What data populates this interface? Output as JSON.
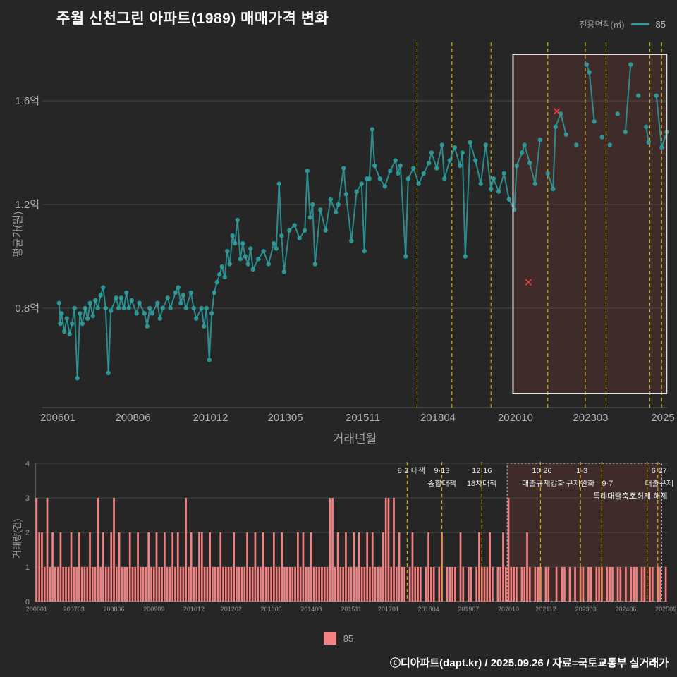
{
  "title": "주월 신천그린 아파트(1989) 매매가격 변화",
  "top_legend": {
    "label": "전용면적(㎡)",
    "value": "85"
  },
  "bottom_legend": {
    "value": "85"
  },
  "footer": "ⓒ디아파트(dapt.kr) / 2025.09.26 / 자료=국토교통부 실거래가",
  "colors": {
    "background": "#262626",
    "series": "#2f9e9e",
    "bars": "#f38181",
    "policy_line": "#c9ac00",
    "highlight_fill": "rgba(198,70,70,0.17)",
    "box_border": "#e2e2e2",
    "dotted_box_border": "#c8c8c8",
    "grid": "#484848",
    "axis": "#8a8a8a",
    "tick_text": "#b0b0b0",
    "small_tick_text": "#999999",
    "annotation_text": "#e3e3e3",
    "marker_x": "#e84040"
  },
  "chart_data": [
    {
      "type": "scatter",
      "name": "price-history",
      "ylabel": "평균가(원)",
      "xlabel": "거래년월",
      "unit": "억",
      "ylim": [
        0.45,
        1.85
      ],
      "xlim": [
        2005.55,
        2025.95
      ],
      "grid": true,
      "yticks": [
        {
          "value": 0.8,
          "label": "0.8억"
        },
        {
          "value": 1.2,
          "label": "1.2억"
        },
        {
          "value": 1.6,
          "label": "1.6억"
        }
      ],
      "xticks": [
        {
          "year": 2006.0,
          "label": "200601"
        },
        {
          "year": 2008.42,
          "label": "200806"
        },
        {
          "year": 2010.92,
          "label": "201012"
        },
        {
          "year": 2013.33,
          "label": "201305"
        },
        {
          "year": 2015.83,
          "label": "201511"
        },
        {
          "year": 2018.25,
          "label": "201804"
        },
        {
          "year": 2020.75,
          "label": "202010"
        },
        {
          "year": 2023.17,
          "label": "202303"
        },
        {
          "year": 2025.5,
          "label": "2025"
        }
      ],
      "policy_lines_year": [
        2017.58,
        2018.7,
        2019.96,
        2021.79,
        2023.0,
        2023.67,
        2025.08,
        2025.46
      ],
      "highlight_year_range": [
        2020.67,
        2025.62
      ],
      "x_markers": [
        [
          2022.08,
          1.56
        ],
        [
          2021.17,
          0.9
        ]
      ],
      "series": [
        {
          "name": "85",
          "points": [
            [
              2006.04,
              0.82
            ],
            [
              2006.08,
              0.74
            ],
            [
              2006.12,
              0.78
            ],
            [
              2006.21,
              0.71
            ],
            [
              2006.29,
              0.76
            ],
            [
              2006.38,
              0.7
            ],
            [
              2006.46,
              0.74
            ],
            [
              2006.54,
              0.8
            ],
            [
              2006.63,
              0.53
            ],
            [
              2006.71,
              0.78
            ],
            [
              2006.79,
              0.74
            ],
            [
              2006.88,
              0.8
            ],
            [
              2006.96,
              0.76
            ],
            [
              2007.04,
              0.82
            ],
            [
              2007.13,
              0.77
            ],
            [
              2007.21,
              0.83
            ],
            [
              2007.29,
              0.8
            ],
            [
              2007.38,
              0.85
            ],
            [
              2007.46,
              0.88
            ],
            [
              2007.54,
              0.8
            ],
            [
              2007.63,
              0.55
            ],
            [
              2007.71,
              0.79
            ],
            [
              2007.88,
              0.84
            ],
            [
              2007.96,
              0.8
            ],
            [
              2008.04,
              0.84
            ],
            [
              2008.13,
              0.8
            ],
            [
              2008.21,
              0.86
            ],
            [
              2008.29,
              0.8
            ],
            [
              2008.38,
              0.83
            ],
            [
              2008.54,
              0.78
            ],
            [
              2008.63,
              0.82
            ],
            [
              2008.79,
              0.78
            ],
            [
              2008.88,
              0.73
            ],
            [
              2008.96,
              0.8
            ],
            [
              2009.04,
              0.78
            ],
            [
              2009.21,
              0.82
            ],
            [
              2009.29,
              0.76
            ],
            [
              2009.38,
              0.8
            ],
            [
              2009.54,
              0.84
            ],
            [
              2009.63,
              0.8
            ],
            [
              2009.79,
              0.86
            ],
            [
              2009.88,
              0.88
            ],
            [
              2009.96,
              0.82
            ],
            [
              2010.04,
              0.85
            ],
            [
              2010.13,
              0.8
            ],
            [
              2010.29,
              0.86
            ],
            [
              2010.38,
              0.8
            ],
            [
              2010.46,
              0.76
            ],
            [
              2010.63,
              0.8
            ],
            [
              2010.71,
              0.73
            ],
            [
              2010.79,
              0.8
            ],
            [
              2010.88,
              0.6
            ],
            [
              2010.96,
              0.78
            ],
            [
              2011.04,
              0.86
            ],
            [
              2011.13,
              0.9
            ],
            [
              2011.21,
              0.93
            ],
            [
              2011.29,
              0.96
            ],
            [
              2011.38,
              0.92
            ],
            [
              2011.46,
              1.02
            ],
            [
              2011.54,
              0.97
            ],
            [
              2011.63,
              1.08
            ],
            [
              2011.71,
              1.05
            ],
            [
              2011.79,
              1.14
            ],
            [
              2011.88,
              0.99
            ],
            [
              2011.96,
              1.05
            ],
            [
              2012.04,
              1.0
            ],
            [
              2012.13,
              0.97
            ],
            [
              2012.21,
              1.03
            ],
            [
              2012.29,
              0.95
            ],
            [
              2012.46,
              0.99
            ],
            [
              2012.63,
              1.02
            ],
            [
              2012.79,
              0.97
            ],
            [
              2012.96,
              1.05
            ],
            [
              2013.04,
              1.03
            ],
            [
              2013.13,
              1.28
            ],
            [
              2013.21,
              1.08
            ],
            [
              2013.29,
              0.94
            ],
            [
              2013.46,
              1.1
            ],
            [
              2013.63,
              1.12
            ],
            [
              2013.79,
              1.07
            ],
            [
              2013.96,
              1.1
            ],
            [
              2014.04,
              1.33
            ],
            [
              2014.13,
              1.15
            ],
            [
              2014.21,
              1.2
            ],
            [
              2014.29,
              0.97
            ],
            [
              2014.46,
              1.18
            ],
            [
              2014.63,
              1.1
            ],
            [
              2014.79,
              1.22
            ],
            [
              2014.96,
              1.17
            ],
            [
              2015.04,
              1.2
            ],
            [
              2015.21,
              1.34
            ],
            [
              2015.29,
              1.24
            ],
            [
              2015.46,
              1.06
            ],
            [
              2015.63,
              1.25
            ],
            [
              2015.79,
              1.28
            ],
            [
              2015.88,
              1.02
            ],
            [
              2015.96,
              1.3
            ],
            [
              2016.04,
              1.3
            ],
            [
              2016.13,
              1.49
            ],
            [
              2016.21,
              1.35
            ],
            [
              2016.38,
              1.3
            ],
            [
              2016.54,
              1.27
            ],
            [
              2016.71,
              1.33
            ],
            [
              2016.88,
              1.37
            ],
            [
              2016.96,
              1.32
            ],
            [
              2017.04,
              1.35
            ],
            [
              2017.21,
              1.0
            ],
            [
              2017.29,
              1.3
            ],
            [
              2017.46,
              1.34
            ],
            [
              2017.63,
              1.28
            ],
            [
              2017.79,
              1.32
            ],
            [
              2017.96,
              1.36
            ],
            [
              2018.04,
              1.4
            ],
            [
              2018.21,
              1.34
            ],
            [
              2018.38,
              1.43
            ],
            [
              2018.46,
              1.3
            ],
            [
              2018.63,
              1.37
            ],
            [
              2018.79,
              1.42
            ],
            [
              2018.96,
              1.35
            ],
            [
              2019.04,
              1.4
            ],
            [
              2019.13,
              1.0
            ],
            [
              2019.29,
              1.44
            ],
            [
              2019.46,
              1.37
            ],
            [
              2019.63,
              1.28
            ],
            [
              2019.79,
              1.43
            ],
            [
              2019.96,
              1.26
            ],
            [
              2020.04,
              1.3
            ],
            [
              2020.21,
              1.25
            ],
            [
              2020.38,
              1.32
            ],
            [
              2020.54,
              1.22
            ],
            [
              2020.71,
              1.18
            ],
            [
              2020.79,
              1.35
            ],
            [
              2020.96,
              1.4
            ],
            [
              2021.04,
              1.43
            ],
            [
              2021.21,
              1.36
            ],
            [
              2021.38,
              1.28
            ],
            [
              2021.54,
              1.45
            ],
            [
              2021.79,
              1.32
            ],
            [
              2021.96,
              1.26
            ],
            [
              2022.04,
              1.5
            ],
            [
              2022.21,
              1.55
            ],
            [
              2022.38,
              1.47
            ],
            [
              2022.71,
              1.43
            ],
            [
              2023.04,
              1.74
            ],
            [
              2023.13,
              1.71
            ],
            [
              2023.29,
              1.52
            ],
            [
              2023.54,
              1.46
            ],
            [
              2023.79,
              1.43
            ],
            [
              2024.04,
              1.55
            ],
            [
              2024.29,
              1.48
            ],
            [
              2024.46,
              1.74
            ],
            [
              2024.71,
              1.62
            ],
            [
              2024.96,
              1.5
            ],
            [
              2025.04,
              1.44
            ],
            [
              2025.29,
              1.62
            ],
            [
              2025.46,
              1.42
            ],
            [
              2025.63,
              1.48
            ]
          ]
        }
      ]
    },
    {
      "type": "bar",
      "name": "transaction-volume",
      "ylabel": "거래량(건)",
      "ylim": [
        0,
        4
      ],
      "yticks": [
        0,
        1,
        2,
        3,
        4
      ],
      "start_month": "200601",
      "values": [
        3,
        2,
        2,
        1,
        3,
        1,
        2,
        1,
        1,
        2,
        1,
        1,
        1,
        2,
        1,
        1,
        2,
        1,
        1,
        1,
        2,
        1,
        1,
        3,
        1,
        2,
        1,
        1,
        2,
        3,
        1,
        2,
        1,
        1,
        1,
        2,
        1,
        1,
        2,
        1,
        1,
        1,
        2,
        1,
        1,
        2,
        1,
        1,
        2,
        1,
        1,
        2,
        1,
        2,
        1,
        1,
        3,
        1,
        2,
        1,
        1,
        2,
        2,
        1,
        1,
        2,
        1,
        1,
        1,
        2,
        1,
        1,
        1,
        1,
        2,
        1,
        1,
        1,
        1,
        2,
        1,
        1,
        2,
        1,
        1,
        2,
        1,
        1,
        1,
        2,
        1,
        1,
        2,
        1,
        1,
        1,
        1,
        1,
        2,
        1,
        2,
        1,
        1,
        2,
        1,
        1,
        1,
        1,
        1,
        1,
        3,
        3,
        1,
        2,
        1,
        1,
        2,
        1,
        1,
        2,
        1,
        2,
        1,
        1,
        2,
        1,
        2,
        1,
        1,
        1,
        2,
        3,
        3,
        1,
        3,
        1,
        2,
        1,
        1,
        0,
        1,
        2,
        1,
        1,
        1,
        0,
        1,
        2,
        1,
        1,
        0,
        1,
        2,
        0,
        1,
        1,
        1,
        1,
        0,
        2,
        1,
        0,
        1,
        1,
        0,
        1,
        2,
        1,
        1,
        1,
        2,
        1,
        0,
        1,
        1,
        2,
        1,
        3,
        1,
        1,
        1,
        0,
        1,
        1,
        2,
        1,
        0,
        1,
        1,
        1,
        0,
        1,
        1,
        0,
        0,
        1,
        0,
        1,
        1,
        0,
        1,
        0,
        1,
        0,
        1,
        1,
        0,
        1,
        1,
        0,
        1,
        1,
        1,
        0,
        1,
        1,
        1,
        0,
        1,
        1,
        0,
        1,
        0,
        1,
        1,
        1,
        0,
        1,
        1,
        0,
        1,
        1,
        0,
        1,
        1,
        0,
        1
      ],
      "xticks": [
        {
          "index": 0,
          "label": "200601"
        },
        {
          "index": 14,
          "label": "200703"
        },
        {
          "index": 29,
          "label": "200806"
        },
        {
          "index": 44,
          "label": "200909"
        },
        {
          "index": 59,
          "label": "201012"
        },
        {
          "index": 73,
          "label": "201202"
        },
        {
          "index": 88,
          "label": "201305"
        },
        {
          "index": 103,
          "label": "201408"
        },
        {
          "index": 118,
          "label": "201511"
        },
        {
          "index": 132,
          "label": "201701"
        },
        {
          "index": 147,
          "label": "201804"
        },
        {
          "index": 162,
          "label": "201907"
        },
        {
          "index": 177,
          "label": "202010"
        },
        {
          "index": 191,
          "label": "202112"
        },
        {
          "index": 206,
          "label": "202303"
        },
        {
          "index": 221,
          "label": "202406"
        },
        {
          "index": 236,
          "label": "202509"
        }
      ],
      "policy_lines_index": [
        139,
        152,
        167,
        189,
        204,
        212,
        229,
        233
      ],
      "highlight_index_range": [
        177,
        235
      ],
      "annotations": [
        {
          "row": 1,
          "index": 139,
          "dx": 6,
          "text": "8·2 대책"
        },
        {
          "row": 1,
          "index": 152,
          "dx": 0,
          "text": "9·13"
        },
        {
          "row": 2,
          "index": 152,
          "dx": 0,
          "text": "종합대책"
        },
        {
          "row": 1,
          "index": 167,
          "dx": 0,
          "text": "12·16"
        },
        {
          "row": 2,
          "index": 167,
          "dx": 0,
          "text": "18차대책"
        },
        {
          "row": 1,
          "index": 189,
          "dx": 2,
          "text": "10·26"
        },
        {
          "row": 2,
          "index": 189,
          "dx": 4,
          "text": "대출규제강화"
        },
        {
          "row": 1,
          "index": 204,
          "dx": 2,
          "text": "1·3"
        },
        {
          "row": 2,
          "index": 204,
          "dx": 0,
          "text": "규제완화"
        },
        {
          "row": 2,
          "index": 212,
          "dx": 8,
          "text": "9·7"
        },
        {
          "row": 3,
          "index": 212,
          "dx": 18,
          "text": "특례대출축소"
        },
        {
          "row": 1,
          "index": 233,
          "dx": 2,
          "text": "6·27"
        },
        {
          "row": 2,
          "index": 233,
          "dx": 2,
          "text": "대출규제"
        },
        {
          "row": 3,
          "index": 229,
          "dx": 2,
          "text": "토허제 해제"
        }
      ]
    }
  ]
}
